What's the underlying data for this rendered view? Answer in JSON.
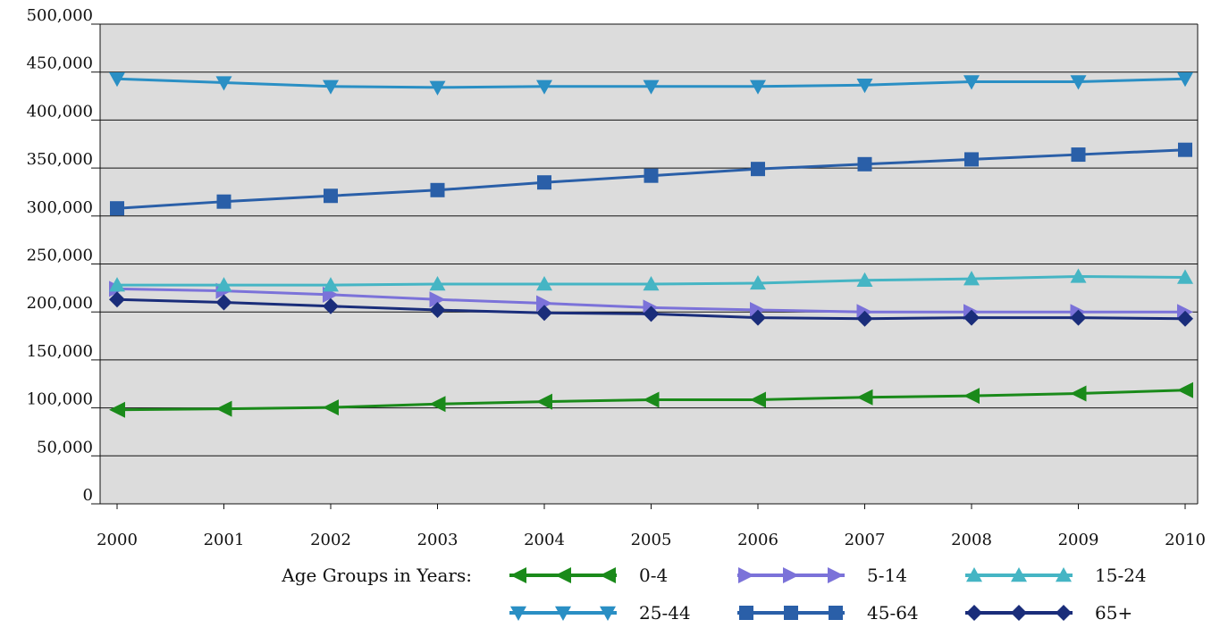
{
  "chart_data": {
    "type": "line",
    "title": "",
    "xlabel": "",
    "ylabel": "",
    "x": [
      "2000",
      "2001",
      "2002",
      "2003",
      "2004",
      "2005",
      "2006",
      "2007",
      "2008",
      "2009",
      "2010"
    ],
    "ylim": [
      0,
      500000
    ],
    "yticks": [
      "0",
      "50,000",
      "100,000",
      "150,000",
      "200,000",
      "250,000",
      "300,000",
      "350,000",
      "400,000",
      "450,000",
      "500,000"
    ],
    "grid": "horizontal",
    "plot_background": "#dcdcdc",
    "legend_title": "Age Groups in Years:",
    "legend_position": "bottom",
    "series": [
      {
        "name": "0-4",
        "color": "#1a8a1a",
        "marker": "triangle-left",
        "values": [
          98000,
          99000,
          100500,
          104000,
          106500,
          108500,
          108500,
          111000,
          112500,
          115000,
          118500
        ]
      },
      {
        "name": "5-14",
        "color": "#7b72d9",
        "marker": "triangle-right",
        "values": [
          224000,
          222000,
          218000,
          213000,
          209000,
          204500,
          202000,
          200000,
          200000,
          200000,
          200000
        ]
      },
      {
        "name": "15-24",
        "color": "#45b5c4",
        "marker": "triangle-up",
        "values": [
          228000,
          228000,
          228000,
          229000,
          229000,
          229000,
          230000,
          233000,
          234500,
          237000,
          236000
        ]
      },
      {
        "name": "25-44",
        "color": "#2a8fc4",
        "marker": "triangle-down",
        "values": [
          443000,
          439000,
          435000,
          434000,
          435000,
          435000,
          435000,
          436500,
          440000,
          440000,
          443000
        ]
      },
      {
        "name": "45-64",
        "color": "#2a5fa8",
        "marker": "square",
        "values": [
          308000,
          315000,
          321000,
          327000,
          335000,
          342000,
          349000,
          354000,
          359000,
          364000,
          369000
        ]
      },
      {
        "name": "65+",
        "color": "#1a2d7a",
        "marker": "diamond",
        "values": [
          213000,
          210000,
          206000,
          202000,
          199000,
          198000,
          194000,
          193000,
          194000,
          194000,
          193000
        ]
      }
    ]
  }
}
